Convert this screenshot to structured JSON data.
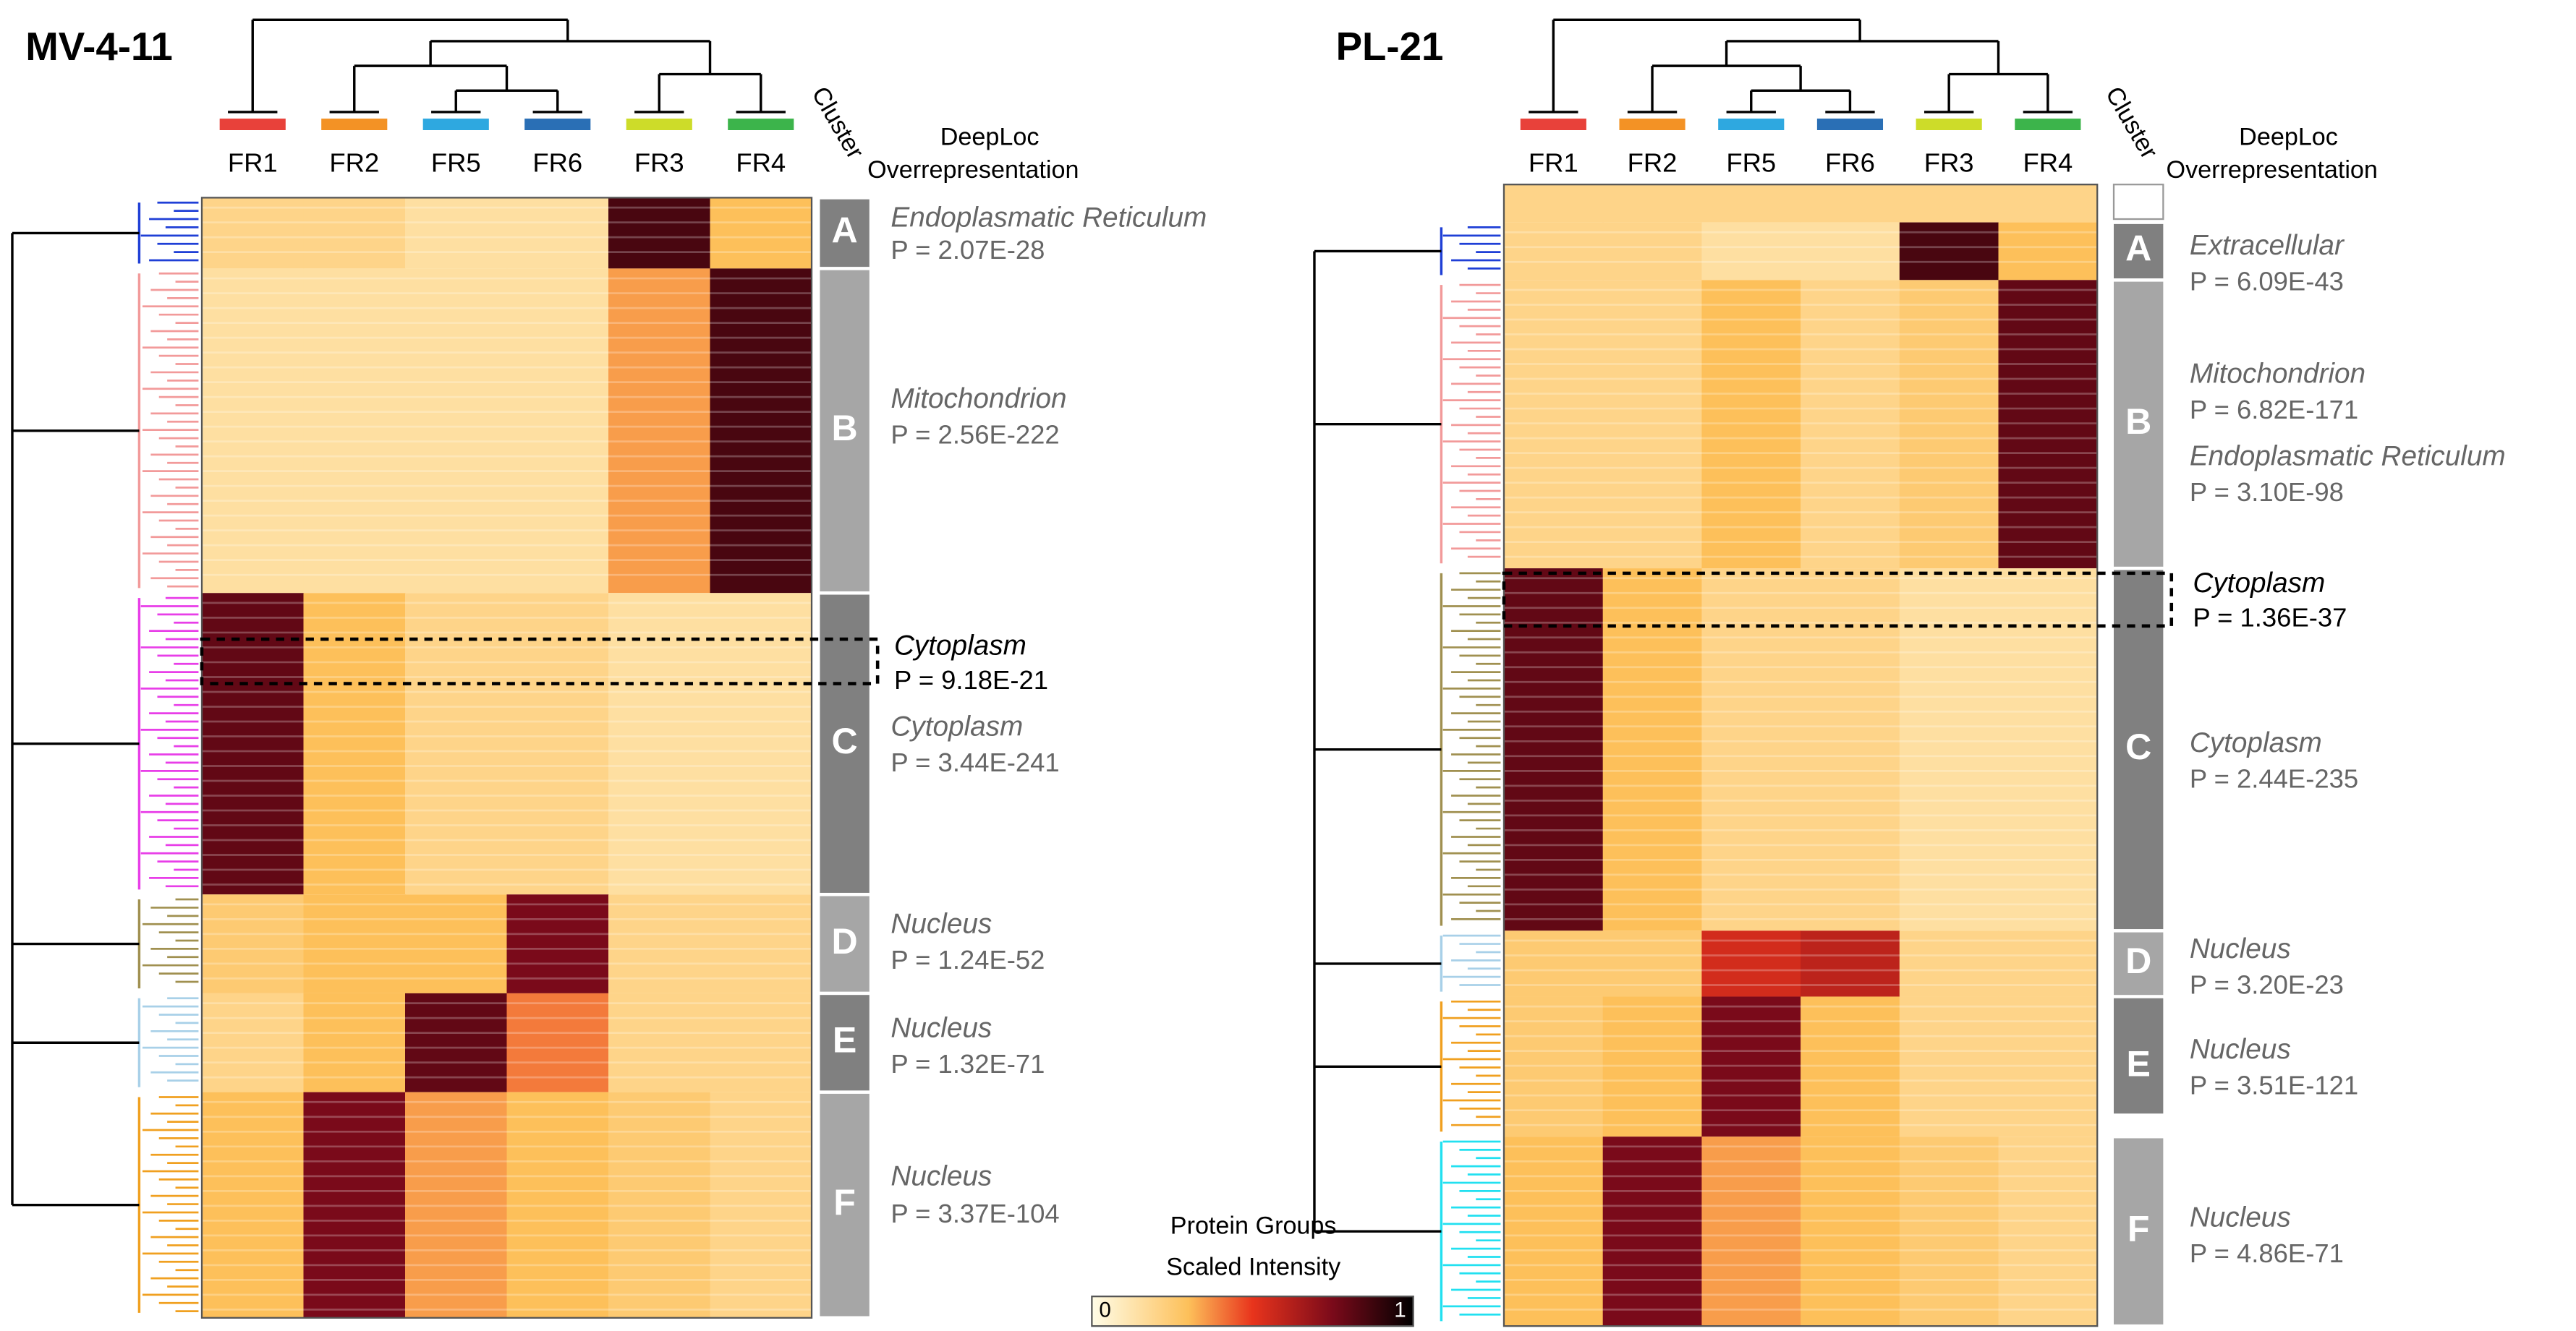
{
  "chart_data": {
    "type": "heatmap",
    "cluster_header": "Cluster",
    "deeploc_header": [
      "DeepLoc",
      "Overrepresentation"
    ],
    "colorbar": {
      "title": [
        "Protein Groups",
        "Scaled Intensity"
      ],
      "ticks": [
        0,
        1
      ]
    },
    "panels": [
      {
        "title": "MV-4-11",
        "fractions": [
          {
            "name": "FR1",
            "color": "#e8413a"
          },
          {
            "name": "FR2",
            "color": "#f39225"
          },
          {
            "name": "FR5",
            "color": "#2ea8e0"
          },
          {
            "name": "FR6",
            "color": "#2a6fb5"
          },
          {
            "name": "FR3",
            "color": "#cddc29"
          },
          {
            "name": "FR4",
            "color": "#3cb44b"
          }
        ],
        "clusters": [
          {
            "label": "A",
            "intensity": [
              0.2,
              0.2,
              0.15,
              0.15,
              0.85,
              0.3
            ],
            "annotations": [
              {
                "localization": "Endoplasmatic Reticulum",
                "p": "P = 2.07E-28"
              }
            ]
          },
          {
            "label": "B",
            "intensity": [
              0.15,
              0.15,
              0.15,
              0.15,
              0.35,
              0.85
            ],
            "annotations": [
              {
                "localization": "Mitochondrion",
                "p": "P = 2.56E-222"
              }
            ]
          },
          {
            "label": "C",
            "intensity": [
              0.8,
              0.3,
              0.2,
              0.2,
              0.15,
              0.15
            ],
            "annotations": [
              {
                "localization": "Cytoplasm",
                "p": "P = 3.44E-241"
              }
            ]
          },
          {
            "label": "D",
            "intensity": [
              0.25,
              0.3,
              0.3,
              0.75,
              0.2,
              0.2
            ],
            "annotations": [
              {
                "localization": "Nucleus",
                "p": "P = 1.24E-52"
              }
            ]
          },
          {
            "label": "E",
            "intensity": [
              0.2,
              0.3,
              0.8,
              0.4,
              0.2,
              0.2
            ],
            "annotations": [
              {
                "localization": "Nucleus",
                "p": "P = 1.32E-71"
              }
            ]
          },
          {
            "label": "F",
            "intensity": [
              0.3,
              0.75,
              0.35,
              0.3,
              0.25,
              0.2
            ],
            "annotations": [
              {
                "localization": "Nucleus",
                "p": "P = 3.37E-104"
              }
            ]
          }
        ],
        "highlight": {
          "localization": "Cytoplasm",
          "p": "P = 9.18E-21"
        }
      },
      {
        "title": "PL-21",
        "fractions": [
          {
            "name": "FR1",
            "color": "#e8413a"
          },
          {
            "name": "FR2",
            "color": "#f39225"
          },
          {
            "name": "FR5",
            "color": "#2ea8e0"
          },
          {
            "name": "FR6",
            "color": "#2a6fb5"
          },
          {
            "name": "FR3",
            "color": "#cddc29"
          },
          {
            "name": "FR4",
            "color": "#3cb44b"
          }
        ],
        "clusters": [
          {
            "label": "A",
            "intensity": [
              0.2,
              0.2,
              0.15,
              0.15,
              0.85,
              0.3
            ],
            "annotations": [
              {
                "localization": "Extracellular",
                "p": "P = 6.09E-43"
              }
            ]
          },
          {
            "label": "B",
            "intensity": [
              0.2,
              0.2,
              0.3,
              0.2,
              0.25,
              0.8
            ],
            "annotations": [
              {
                "localization": "Mitochondrion",
                "p": "P = 6.82E-171"
              },
              {
                "localization": "Endoplasmatic Reticulum",
                "p": "P = 3.10E-98"
              }
            ]
          },
          {
            "label": "C",
            "intensity": [
              0.8,
              0.3,
              0.2,
              0.2,
              0.15,
              0.15
            ],
            "annotations": [
              {
                "localization": "Cytoplasm",
                "p": "P = 2.44E-235"
              }
            ]
          },
          {
            "label": "D",
            "intensity": [
              0.25,
              0.25,
              0.55,
              0.6,
              0.2,
              0.2
            ],
            "annotations": [
              {
                "localization": "Nucleus",
                "p": "P = 3.20E-23"
              }
            ]
          },
          {
            "label": "E",
            "intensity": [
              0.25,
              0.3,
              0.75,
              0.3,
              0.2,
              0.2
            ],
            "annotations": [
              {
                "localization": "Nucleus",
                "p": "P = 3.51E-121"
              }
            ]
          },
          {
            "label": "F",
            "intensity": [
              0.3,
              0.75,
              0.35,
              0.3,
              0.25,
              0.2
            ],
            "annotations": [
              {
                "localization": "Nucleus",
                "p": "P = 4.86E-71"
              }
            ]
          }
        ],
        "highlight": {
          "localization": "Cytoplasm",
          "p": "P = 1.36E-37"
        }
      }
    ]
  }
}
